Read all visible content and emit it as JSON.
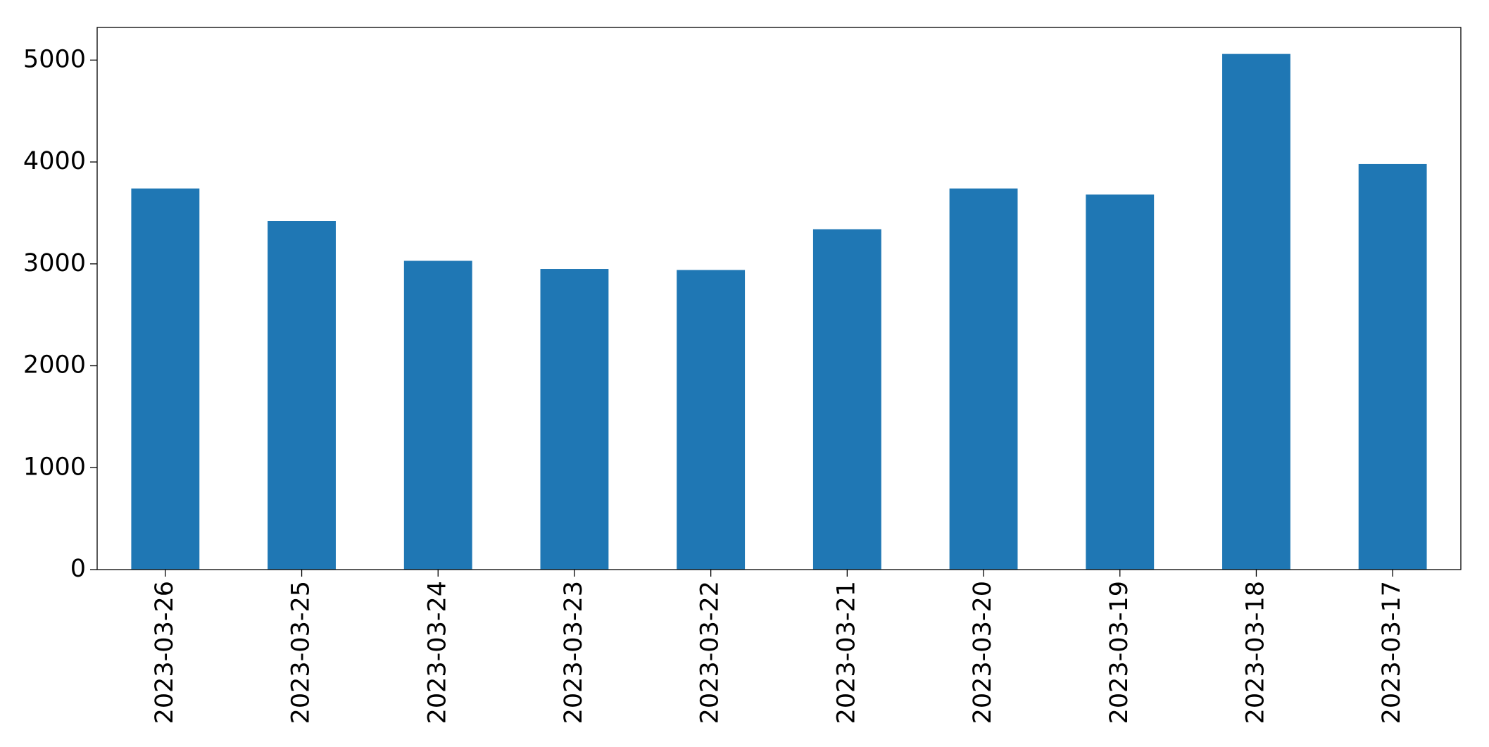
{
  "chart_data": {
    "type": "bar",
    "categories": [
      "2023-03-26",
      "2023-03-25",
      "2023-03-24",
      "2023-03-23",
      "2023-03-22",
      "2023-03-21",
      "2023-03-20",
      "2023-03-19",
      "2023-03-18",
      "2023-03-17"
    ],
    "values": [
      3740,
      3420,
      3030,
      2950,
      2940,
      3340,
      3740,
      3680,
      5060,
      3980
    ],
    "color": "#1f77b4",
    "ylim": [
      0,
      5320
    ],
    "yticks": [
      0,
      1000,
      2000,
      3000,
      4000,
      5000
    ],
    "grid": false
  }
}
